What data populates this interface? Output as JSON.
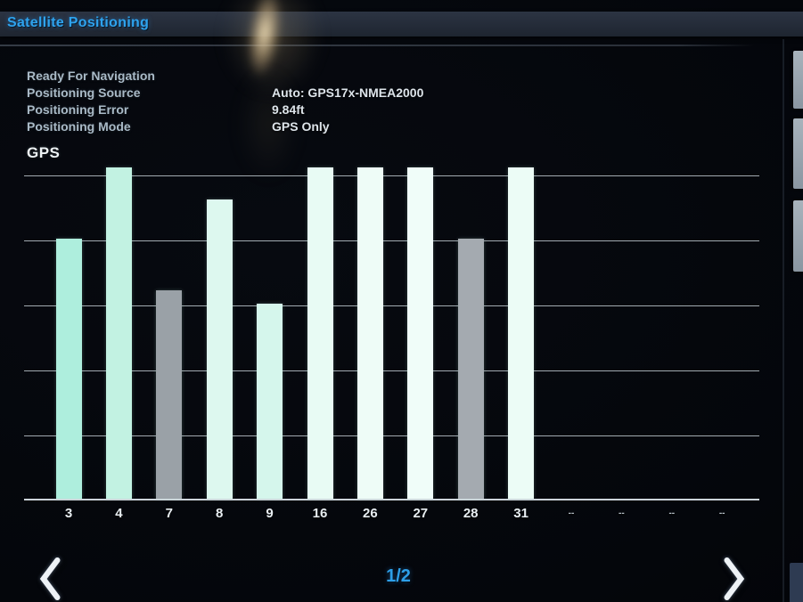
{
  "header": {
    "title": "Satellite Positioning"
  },
  "status": {
    "ready_text": "Ready For Navigation",
    "rows": [
      {
        "label": "Positioning Source",
        "value": "Auto: GPS17x-NMEA2000"
      },
      {
        "label": "Positioning Error",
        "value": "9.84ft"
      },
      {
        "label": "Positioning Mode",
        "value": "GPS Only"
      }
    ]
  },
  "chart_data": {
    "type": "bar",
    "title": "GPS",
    "categories": [
      "3",
      "4",
      "7",
      "8",
      "9",
      "16",
      "26",
      "27",
      "28",
      "31",
      "--",
      "--",
      "--",
      "--"
    ],
    "values": [
      4.0,
      5.1,
      3.2,
      4.6,
      3.0,
      5.1,
      5.1,
      5.1,
      4.0,
      5.1,
      null,
      null,
      null,
      null
    ],
    "bar_colors": [
      "#aeeedd",
      "#c2f2e2",
      "#9aa1a7",
      "#ddf8ef",
      "#d5f6ec",
      "#e8fbf4",
      "#eefcf7",
      "#f0fdf9",
      "#a4aab0",
      "#ecfcf6",
      null,
      null,
      null,
      null
    ],
    "xlabel": "",
    "ylabel": "",
    "ylim": [
      0,
      5.2
    ],
    "gridline_count": 6,
    "legend": []
  },
  "pager": {
    "current": "1/2",
    "prev_icon": "chevron-left",
    "next_icon": "chevron-right"
  },
  "colors": {
    "accent_blue": "#2ea3ee",
    "bar_cyan": "#d9f7ee",
    "bar_gray": "#a0a6ac"
  }
}
